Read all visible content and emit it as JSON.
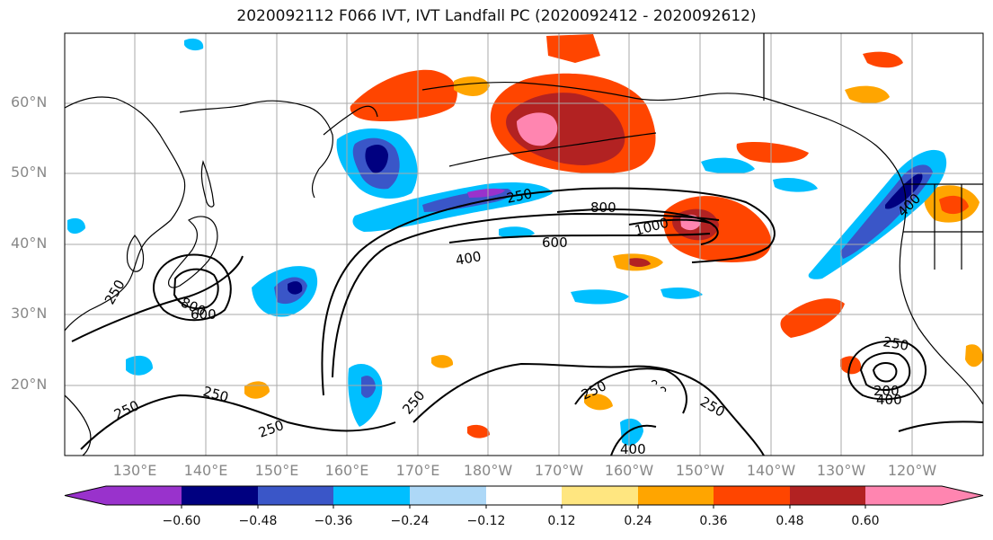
{
  "title": "2020092112 F066 IVT, IVT Landfall PC (2020092412 - 2020092612)",
  "axes": {
    "lat_labels": [
      "60°N",
      "50°N",
      "40°N",
      "30°N",
      "20°N"
    ],
    "lon_labels": [
      "130°E",
      "140°E",
      "150°E",
      "160°E",
      "170°E",
      "180°W",
      "170°W",
      "160°W",
      "150°W",
      "140°W",
      "130°W",
      "120°W"
    ]
  },
  "contours": {
    "labels": [
      "250",
      "800",
      "1000",
      "600",
      "400",
      "250",
      "800",
      "600",
      "250",
      "250",
      "250",
      "250",
      "250",
      "250",
      "400",
      "250",
      "200",
      "400",
      "400"
    ]
  },
  "colorbar": {
    "tick_labels": [
      "−0.60",
      "−0.48",
      "−0.36",
      "−0.24",
      "−0.12",
      "0.12",
      "0.24",
      "0.36",
      "0.48",
      "0.60"
    ],
    "colors": [
      "#9932cc",
      "#000080",
      "#3a56c8",
      "#00bfff",
      "#add8f7",
      "#ffffff",
      "#ffe680",
      "#ffa500",
      "#ff4500",
      "#b22222",
      "#ff85b0"
    ]
  },
  "colors": {
    "land_outline": "#000000",
    "grid": "#aaaaaa",
    "contour": "#000000"
  }
}
